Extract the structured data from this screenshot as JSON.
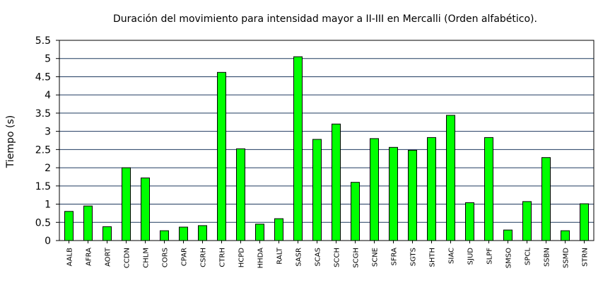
{
  "chart_data": {
    "type": "bar",
    "title": "Duración del movimiento para intensidad mayor a II-III en Mercalli (Orden alfabético).",
    "xlabel": "",
    "ylabel": "Tiempo (s)",
    "ylim": [
      0,
      5.5
    ],
    "yticks": [
      "0",
      "0.5",
      "1",
      "1.5",
      "2",
      "2.5",
      "3",
      "3.5",
      "4",
      "4.5",
      "5",
      "5.5"
    ],
    "grid": true,
    "bar_color": "#00ff00",
    "grid_color": "#1f3a5f",
    "categories": [
      "AALB",
      "AFRA",
      "AORT",
      "CCDN",
      "CHLM",
      "CORS",
      "CPAR",
      "CSRH",
      "CTRH",
      "HCPD",
      "HHDA",
      "RALT",
      "SASR",
      "SCAS",
      "SCCH",
      "SCGH",
      "SCNE",
      "SFRA",
      "SGTS",
      "SHTH",
      "SIAC",
      "SJUD",
      "SLPF",
      "SMSO",
      "SPCL",
      "SSBN",
      "SSMD",
      "STRN"
    ],
    "values": [
      0.8,
      0.95,
      0.38,
      2.0,
      1.72,
      0.27,
      0.37,
      0.41,
      4.62,
      2.52,
      0.45,
      0.6,
      5.05,
      2.78,
      3.2,
      1.6,
      2.8,
      2.56,
      2.48,
      2.83,
      3.44,
      1.04,
      2.83,
      0.29,
      1.07,
      2.28,
      0.27,
      1.01
    ]
  }
}
